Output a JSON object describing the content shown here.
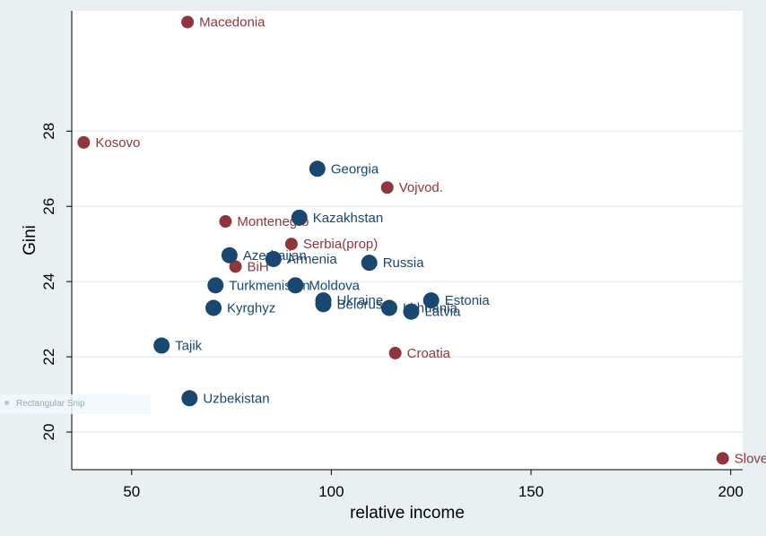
{
  "chart_data": {
    "type": "scatter",
    "xlabel": "relative income",
    "ylabel": "Gini",
    "xlim": [
      35,
      203
    ],
    "ylim": [
      19,
      31.2
    ],
    "x_ticks": [
      50,
      100,
      150,
      200
    ],
    "y_ticks": [
      20,
      22,
      24,
      26,
      28
    ],
    "grid": "horizontal",
    "colors": {
      "blue": "#1a476f",
      "red": "#90353b"
    },
    "series": [
      {
        "color": "#90353b",
        "size": "small",
        "points": [
          {
            "label": "Macedonia",
            "x": 64,
            "y": 30.9
          },
          {
            "label": "Kosovo",
            "x": 38,
            "y": 27.7
          },
          {
            "label": "Vojvod.",
            "x": 114,
            "y": 26.5
          },
          {
            "label": "Montenegro",
            "x": 73.5,
            "y": 25.6
          },
          {
            "label": "Serbia(prop)",
            "x": 90,
            "y": 25.0
          },
          {
            "label": "BiH",
            "x": 76,
            "y": 24.4
          },
          {
            "label": "Croatia",
            "x": 116,
            "y": 22.1
          },
          {
            "label": "Slove",
            "x": 198,
            "y": 19.3
          }
        ]
      },
      {
        "color": "#1a476f",
        "size": "large",
        "points": [
          {
            "label": "Georgia",
            "x": 96.5,
            "y": 27.0
          },
          {
            "label": "Kazakhstan",
            "x": 92,
            "y": 25.7
          },
          {
            "label": "Azerbaijan",
            "x": 74.5,
            "y": 24.7
          },
          {
            "label": "Armenia",
            "x": 85.5,
            "y": 24.6
          },
          {
            "label": "Russia",
            "x": 109.5,
            "y": 24.5
          },
          {
            "label": "Turkmenistan",
            "x": 71,
            "y": 23.9
          },
          {
            "label": "Moldova",
            "x": 91,
            "y": 23.9
          },
          {
            "label": "Ukraine",
            "x": 98,
            "y": 23.5
          },
          {
            "label": "Belorus",
            "x": 98,
            "y": 23.4
          },
          {
            "label": "Lithuania",
            "x": 114.5,
            "y": 23.3
          },
          {
            "label": "Latvia",
            "x": 120,
            "y": 23.2
          },
          {
            "label": "Estonia",
            "x": 125,
            "y": 23.5
          },
          {
            "label": "Kyrghyz",
            "x": 70.5,
            "y": 23.3
          },
          {
            "label": "Tajik",
            "x": 57.5,
            "y": 22.3
          },
          {
            "label": "Uzbekistan",
            "x": 64.5,
            "y": 20.9
          }
        ]
      }
    ]
  },
  "overlay": {
    "label": "Rectangular Snip"
  }
}
